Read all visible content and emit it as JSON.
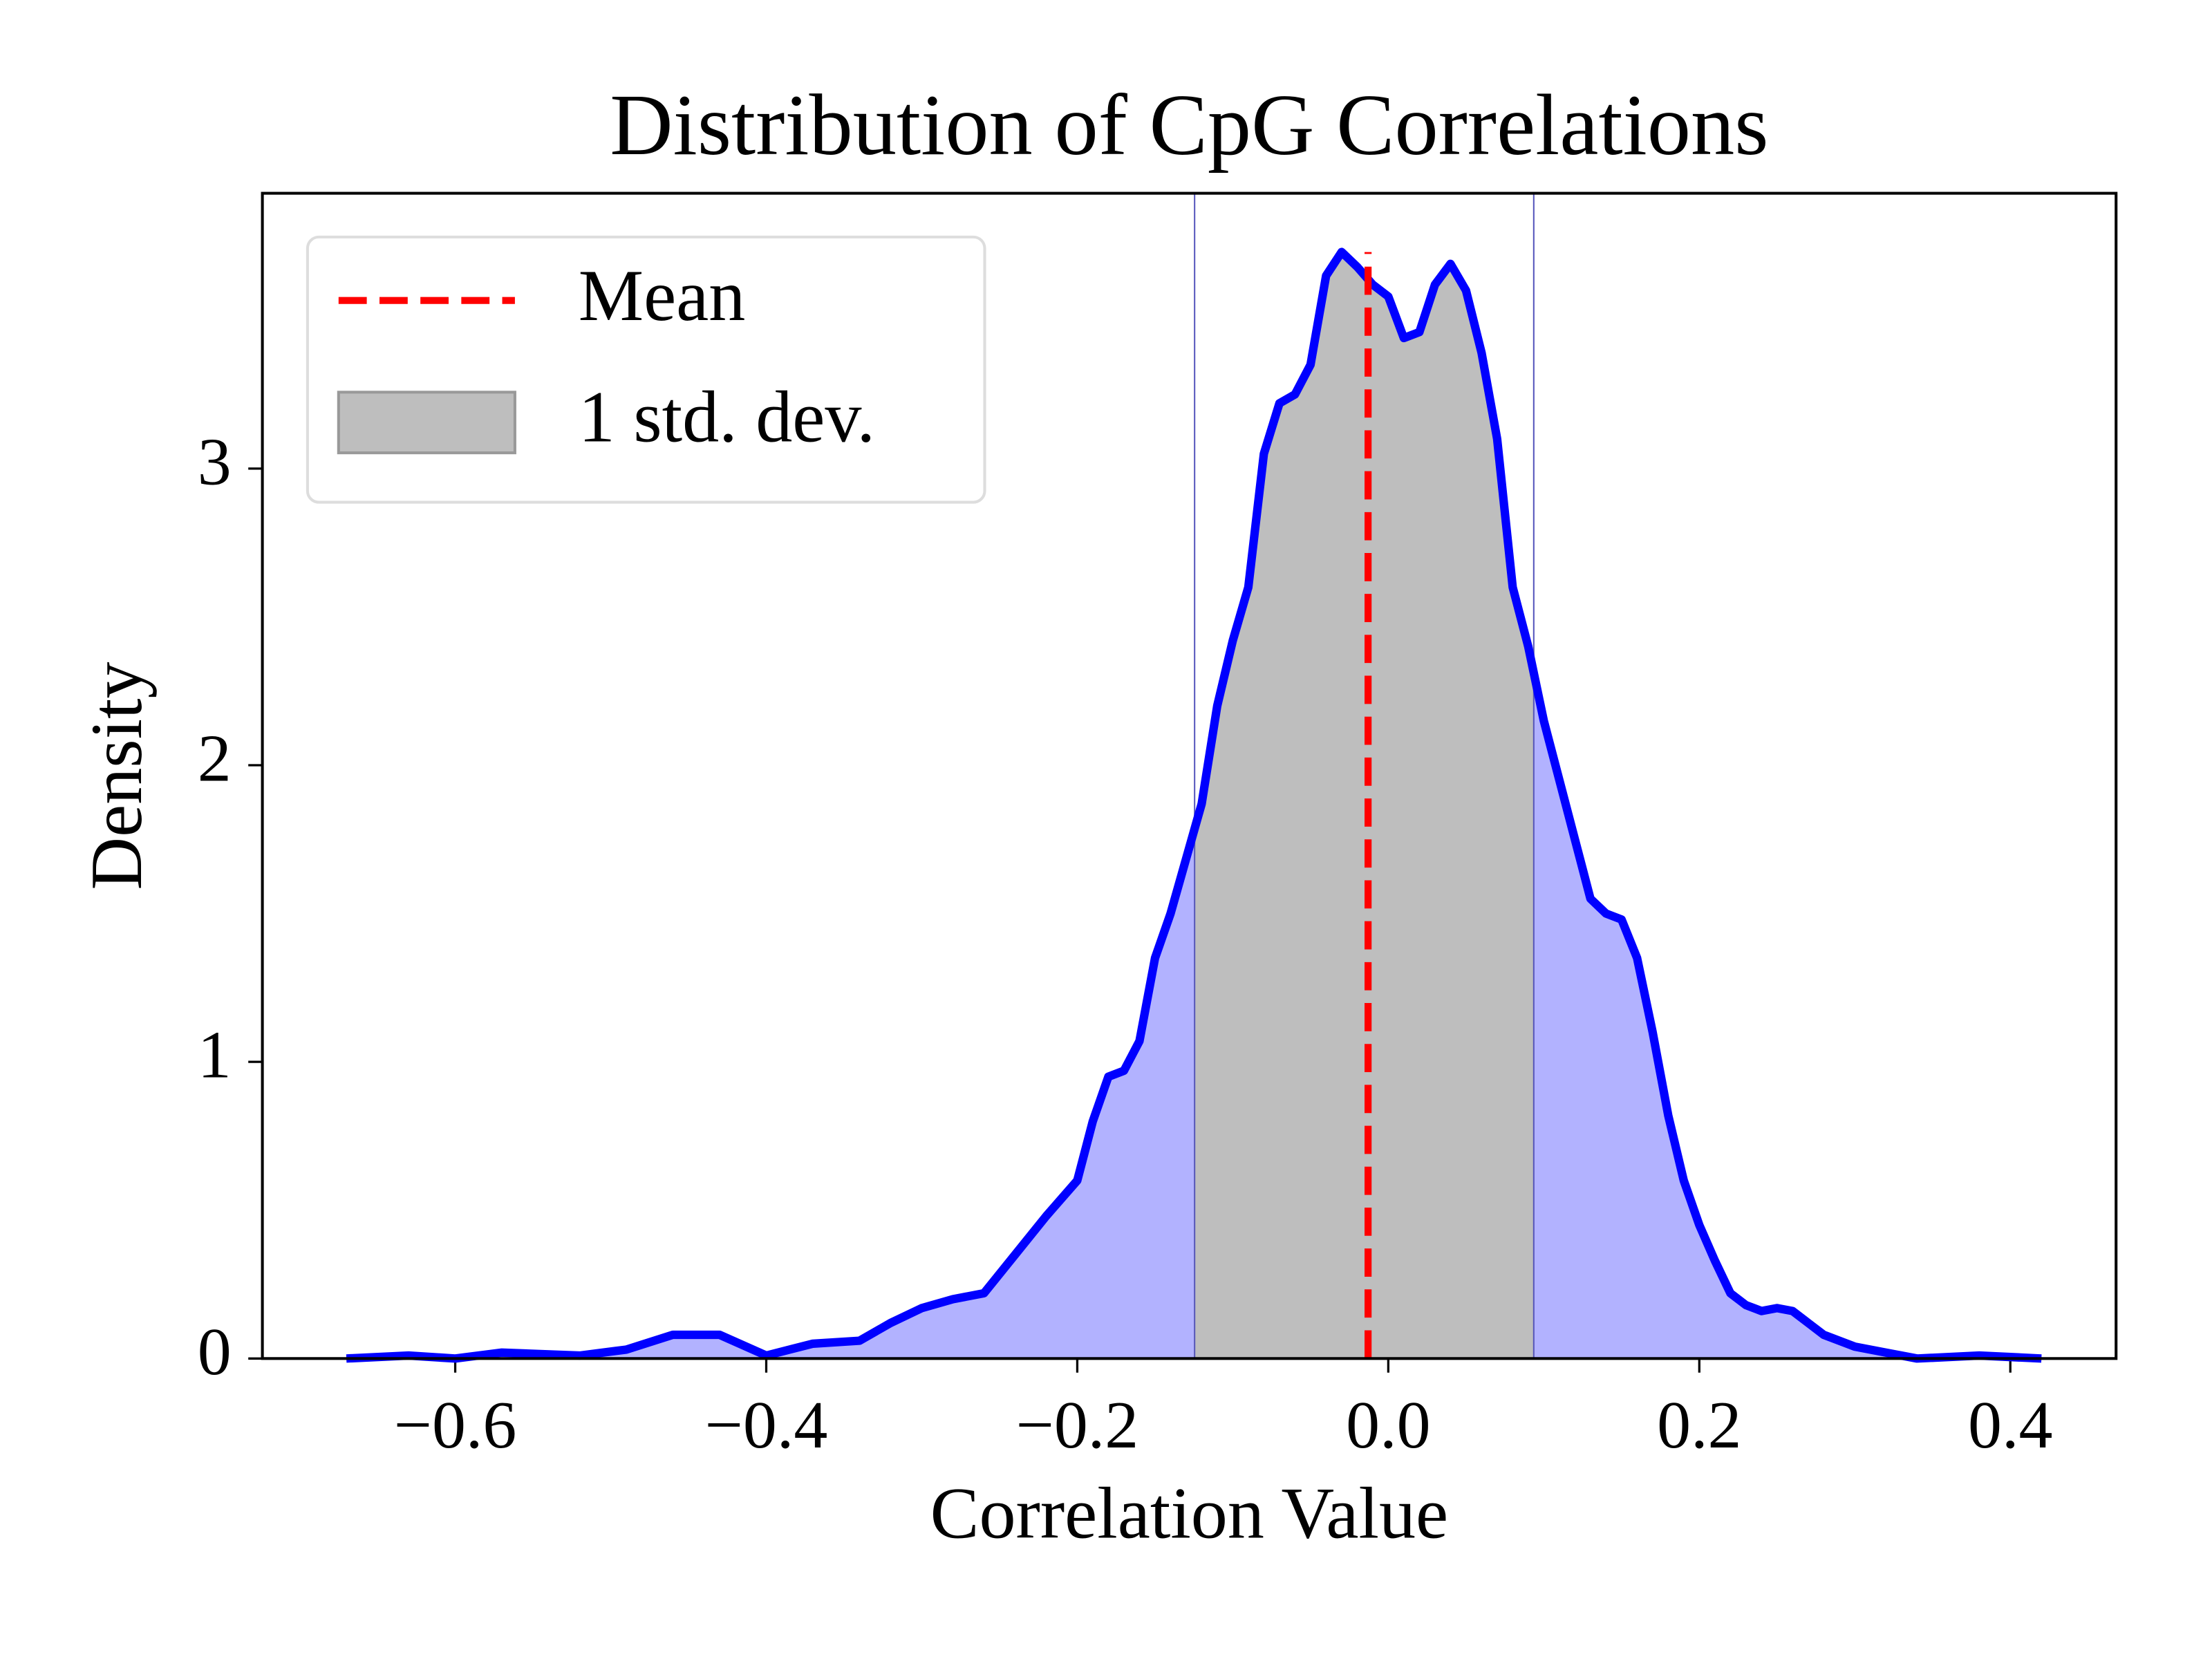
{
  "chart_data": {
    "type": "kde",
    "title": "Distribution of CpG Correlations",
    "x_label": "Correlation Value",
    "y_label": "Density",
    "x": [
      -0.67,
      -0.63,
      -0.6,
      -0.57,
      -0.52,
      -0.49,
      -0.46,
      -0.43,
      -0.4,
      -0.37,
      -0.34,
      -0.32,
      -0.3,
      -0.28,
      -0.26,
      -0.24,
      -0.22,
      -0.2,
      -0.19,
      -0.18,
      -0.17,
      -0.16,
      -0.15,
      -0.14,
      -0.12,
      -0.11,
      -0.1,
      -0.09,
      -0.08,
      -0.07,
      -0.06,
      -0.05,
      -0.04,
      -0.03,
      -0.02,
      -0.01,
      0.0,
      0.01,
      0.02,
      0.03,
      0.04,
      0.05,
      0.06,
      0.07,
      0.08,
      0.09,
      0.1,
      0.11,
      0.12,
      0.13,
      0.14,
      0.15,
      0.16,
      0.17,
      0.18,
      0.19,
      0.2,
      0.21,
      0.22,
      0.23,
      0.24,
      0.25,
      0.26,
      0.27,
      0.28,
      0.3,
      0.32,
      0.34,
      0.38,
      0.42
    ],
    "series": [
      {
        "name": "Density",
        "color": "#0000ff",
        "values": [
          0,
          0.01,
          0,
          0.02,
          0.01,
          0.03,
          0.08,
          0.08,
          0.01,
          0.05,
          0.06,
          0.12,
          0.17,
          0.2,
          0.22,
          0.35,
          0.48,
          0.6,
          0.8,
          0.95,
          0.97,
          1.07,
          1.35,
          1.5,
          1.87,
          2.2,
          2.42,
          2.6,
          3.05,
          3.22,
          3.25,
          3.35,
          3.65,
          3.73,
          3.68,
          3.62,
          3.58,
          3.44,
          3.46,
          3.62,
          3.69,
          3.6,
          3.39,
          3.1,
          2.6,
          2.4,
          2.15,
          1.95,
          1.75,
          1.55,
          1.5,
          1.48,
          1.35,
          1.1,
          0.82,
          0.6,
          0.45,
          0.33,
          0.22,
          0.18,
          0.16,
          0.17,
          0.16,
          0.12,
          0.08,
          0.04,
          0.02,
          0,
          0.01,
          0
        ]
      }
    ],
    "mean": {
      "name": "Mean",
      "value": -0.013,
      "color": "#ff0000"
    },
    "std_band": {
      "name": "1 std. dev.",
      "low": -0.125,
      "high": 0.094,
      "color": "#bebebe"
    },
    "xlim": [
      -0.724,
      0.468
    ],
    "ylim": [
      0,
      3.928
    ],
    "xticks": [
      {
        "value": -0.6,
        "label": "−0.6"
      },
      {
        "value": -0.4,
        "label": "−0.4"
      },
      {
        "value": -0.2,
        "label": "−0.2"
      },
      {
        "value": 0,
        "label": "0.0"
      },
      0.2,
      0.4
    ],
    "yticks": [
      0,
      1,
      2,
      3
    ],
    "legend": "upper left"
  }
}
